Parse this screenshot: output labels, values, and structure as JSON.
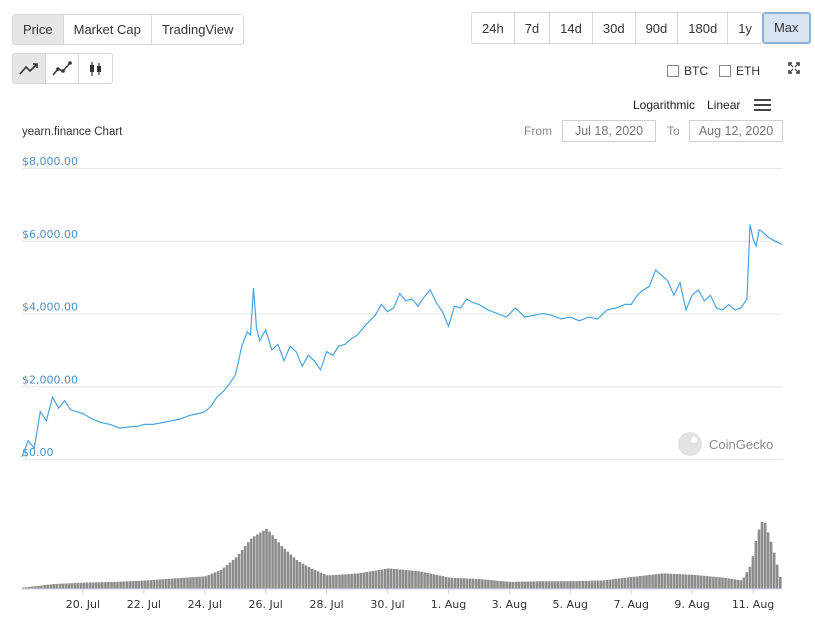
{
  "tabs": [
    {
      "label": "Price",
      "active": true
    },
    {
      "label": "Market Cap",
      "active": false
    },
    {
      "label": "TradingView",
      "active": false
    }
  ],
  "ranges": [
    {
      "label": "24h",
      "active": false
    },
    {
      "label": "7d",
      "active": false
    },
    {
      "label": "14d",
      "active": false
    },
    {
      "label": "30d",
      "active": false
    },
    {
      "label": "90d",
      "active": false
    },
    {
      "label": "180d",
      "active": false
    },
    {
      "label": "1y",
      "active": false
    },
    {
      "label": "Max",
      "active": true
    }
  ],
  "chart_type_icons": [
    "line-chart-icon",
    "ohlc-line-chart-icon",
    "candlestick-chart-icon"
  ],
  "compare": {
    "btc": "BTC",
    "eth": "ETH"
  },
  "scale": {
    "log": "Logarithmic",
    "linear": "Linear"
  },
  "date_range": {
    "from_label": "From",
    "from_value": "Jul 18, 2020",
    "to_label": "To",
    "to_value": "Aug 12, 2020"
  },
  "watermark": "CoinGecko",
  "colors": {
    "line": "#4aa3df",
    "volume": "#8c8c8c",
    "accent": "#8db2dc",
    "ylabel": "#4d90c7"
  },
  "chart_data": {
    "type": "line",
    "title": "yearn.finance Chart",
    "y_ticks": [
      "$0.00",
      "$2,000.00",
      "$4,000.00",
      "$6,000.00",
      "$8,000.00"
    ],
    "ylim": [
      0,
      8000
    ],
    "x_ticks": [
      "20. Jul",
      "22. Jul",
      "24. Jul",
      "26. Jul",
      "28. Jul",
      "30. Jul",
      "1. Aug",
      "3. Aug",
      "5. Aug",
      "7. Aug",
      "9. Aug",
      "11. Aug"
    ],
    "x_tick_days": [
      20,
      22,
      24,
      26,
      28,
      30,
      32,
      34,
      36,
      38,
      40,
      42
    ],
    "xlim_days": [
      18.0,
      42.95
    ],
    "series": [
      {
        "x_days": [
          18.0,
          18.2,
          18.4,
          18.6,
          18.8,
          19.0,
          19.2,
          19.4,
          19.6,
          19.8,
          20.0,
          20.3,
          20.6,
          20.9,
          21.2,
          21.5,
          21.8,
          22.0,
          22.3,
          22.6,
          22.9,
          23.2,
          23.5,
          23.8,
          24.0,
          24.2,
          24.4,
          24.6,
          24.8,
          25.0,
          25.1,
          25.2,
          25.3,
          25.4,
          25.5,
          25.6,
          25.7,
          25.8,
          26.0,
          26.2,
          26.4,
          26.6,
          26.8,
          27.0,
          27.2,
          27.4,
          27.6,
          27.8,
          28.0,
          28.2,
          28.4,
          28.6,
          28.8,
          29.0,
          29.3,
          29.6,
          29.8,
          30.0,
          30.2,
          30.4,
          30.6,
          30.8,
          31.0,
          31.2,
          31.4,
          31.6,
          31.8,
          32.0,
          32.2,
          32.4,
          32.6,
          32.8,
          33.0,
          33.3,
          33.6,
          33.9,
          34.2,
          34.5,
          34.8,
          35.1,
          35.4,
          35.7,
          36.0,
          36.3,
          36.6,
          36.9,
          37.2,
          37.5,
          37.8,
          38.0,
          38.2,
          38.4,
          38.6,
          38.8,
          39.0,
          39.2,
          39.4,
          39.6,
          39.8,
          40.0,
          40.2,
          40.4,
          40.6,
          40.8,
          41.0,
          41.2,
          41.4,
          41.6,
          41.8,
          41.9,
          42.0,
          42.1,
          42.2,
          42.3,
          42.5,
          42.7,
          42.95
        ],
        "values": [
          60,
          500,
          300,
          1300,
          1050,
          1700,
          1400,
          1600,
          1350,
          1300,
          1250,
          1100,
          1000,
          950,
          850,
          880,
          900,
          950,
          950,
          1000,
          1050,
          1100,
          1200,
          1250,
          1300,
          1450,
          1700,
          1850,
          2050,
          2300,
          2650,
          3050,
          3300,
          3500,
          3400,
          4700,
          3600,
          3250,
          3550,
          3000,
          3150,
          2700,
          3100,
          2950,
          2550,
          2850,
          2700,
          2450,
          2950,
          2850,
          3100,
          3150,
          3300,
          3400,
          3700,
          3950,
          4250,
          4050,
          4150,
          4550,
          4350,
          4400,
          4200,
          4450,
          4650,
          4300,
          4050,
          3650,
          4200,
          4150,
          4400,
          4300,
          4250,
          4100,
          4000,
          3900,
          4150,
          3900,
          3950,
          4000,
          3950,
          3850,
          3900,
          3800,
          3900,
          3850,
          4100,
          4150,
          4250,
          4250,
          4500,
          4650,
          4750,
          5200,
          5050,
          4900,
          4500,
          4850,
          4100,
          4500,
          4650,
          4350,
          4500,
          4150,
          4100,
          4250,
          4100,
          4150,
          4400,
          6450,
          6050,
          5850,
          6300,
          6250,
          6100,
          6000,
          5900
        ]
      }
    ],
    "volume": {
      "x_days": [
        18.0,
        19.0,
        20.0,
        21.0,
        22.0,
        23.0,
        24.0,
        24.5,
        25.0,
        25.5,
        26.0,
        26.5,
        27.0,
        27.5,
        28.0,
        29.0,
        30.0,
        31.0,
        32.0,
        33.0,
        34.0,
        35.0,
        36.0,
        37.0,
        38.0,
        39.0,
        40.0,
        41.0,
        41.6,
        41.9,
        42.1,
        42.3,
        42.6,
        42.95
      ],
      "relative": [
        0.02,
        0.07,
        0.09,
        0.1,
        0.12,
        0.15,
        0.18,
        0.27,
        0.45,
        0.72,
        0.85,
        0.6,
        0.4,
        0.28,
        0.19,
        0.22,
        0.29,
        0.25,
        0.16,
        0.14,
        0.1,
        0.11,
        0.11,
        0.12,
        0.17,
        0.22,
        0.2,
        0.16,
        0.12,
        0.35,
        0.78,
        1.0,
        0.6,
        0.0
      ]
    }
  }
}
